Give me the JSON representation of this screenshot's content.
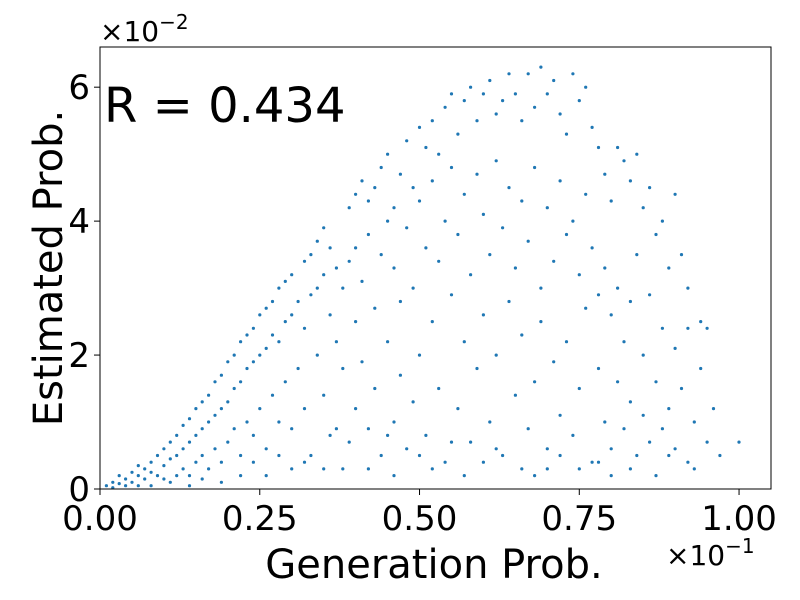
{
  "chart_data": {
    "type": "scatter",
    "title": "",
    "xlabel": "Generation Prob.",
    "ylabel": "Estimated Prob.",
    "annotation": "R = 0.434",
    "x_offset_text": {
      "base": "×10",
      "exp": "−1"
    },
    "y_offset_text": {
      "base": "×10",
      "exp": "−2"
    },
    "xlim": [
      0.0,
      1.05
    ],
    "ylim": [
      0.0,
      6.6
    ],
    "xticks": [
      0.0,
      0.25,
      0.5,
      0.75,
      1.0
    ],
    "xtick_labels": [
      "0.00",
      "0.25",
      "0.50",
      "0.75",
      "1.00"
    ],
    "yticks": [
      0,
      2,
      4,
      6
    ],
    "ytick_labels": [
      "0",
      "2",
      "4",
      "6"
    ],
    "grid": false,
    "marker_color": "#1f77b4",
    "series": [
      {
        "points": [
          [
            0.01,
            0.05
          ],
          [
            0.02,
            0.1
          ],
          [
            0.03,
            0.08
          ],
          [
            0.04,
            0.15
          ],
          [
            0.05,
            0.1
          ],
          [
            0.05,
            0.25
          ],
          [
            0.06,
            0.2
          ],
          [
            0.06,
            0.35
          ],
          [
            0.07,
            0.3
          ],
          [
            0.07,
            0.15
          ],
          [
            0.08,
            0.4
          ],
          [
            0.08,
            0.25
          ],
          [
            0.09,
            0.5
          ],
          [
            0.09,
            0.2
          ],
          [
            0.1,
            0.6
          ],
          [
            0.1,
            0.35
          ],
          [
            0.1,
            0.15
          ],
          [
            0.11,
            0.7
          ],
          [
            0.11,
            0.45
          ],
          [
            0.12,
            0.8
          ],
          [
            0.12,
            0.5
          ],
          [
            0.12,
            0.2
          ],
          [
            0.13,
            0.95
          ],
          [
            0.13,
            0.6
          ],
          [
            0.13,
            0.3
          ],
          [
            0.14,
            1.05
          ],
          [
            0.14,
            0.7
          ],
          [
            0.14,
            0.2
          ],
          [
            0.15,
            1.2
          ],
          [
            0.15,
            0.8
          ],
          [
            0.15,
            0.4
          ],
          [
            0.16,
            1.3
          ],
          [
            0.16,
            0.9
          ],
          [
            0.16,
            0.5
          ],
          [
            0.17,
            1.4
          ],
          [
            0.17,
            1.0
          ],
          [
            0.17,
            0.3
          ],
          [
            0.18,
            1.6
          ],
          [
            0.18,
            1.1
          ],
          [
            0.18,
            0.6
          ],
          [
            0.19,
            1.7
          ],
          [
            0.19,
            1.2
          ],
          [
            0.19,
            0.4
          ],
          [
            0.2,
            1.9
          ],
          [
            0.2,
            1.3
          ],
          [
            0.2,
            0.7
          ],
          [
            0.21,
            2.0
          ],
          [
            0.21,
            1.5
          ],
          [
            0.21,
            0.9
          ],
          [
            0.22,
            2.2
          ],
          [
            0.22,
            1.6
          ],
          [
            0.22,
            0.5
          ],
          [
            0.23,
            2.3
          ],
          [
            0.23,
            1.8
          ],
          [
            0.23,
            1.0
          ],
          [
            0.24,
            2.4
          ],
          [
            0.24,
            1.9
          ],
          [
            0.24,
            0.8
          ],
          [
            0.25,
            2.6
          ],
          [
            0.25,
            2.0
          ],
          [
            0.25,
            1.2
          ],
          [
            0.26,
            2.7
          ],
          [
            0.26,
            2.1
          ],
          [
            0.26,
            0.6
          ],
          [
            0.27,
            2.8
          ],
          [
            0.27,
            2.3
          ],
          [
            0.27,
            1.4
          ],
          [
            0.28,
            3.0
          ],
          [
            0.28,
            2.2
          ],
          [
            0.28,
            1.0
          ],
          [
            0.29,
            3.1
          ],
          [
            0.29,
            2.5
          ],
          [
            0.29,
            1.6
          ],
          [
            0.3,
            3.2
          ],
          [
            0.3,
            2.6
          ],
          [
            0.3,
            0.9
          ],
          [
            0.31,
            2.8
          ],
          [
            0.31,
            1.8
          ],
          [
            0.32,
            3.4
          ],
          [
            0.32,
            2.4
          ],
          [
            0.32,
            1.2
          ],
          [
            0.33,
            3.5
          ],
          [
            0.33,
            2.9
          ],
          [
            0.33,
            0.5
          ],
          [
            0.34,
            3.7
          ],
          [
            0.34,
            3.0
          ],
          [
            0.34,
            2.0
          ],
          [
            0.35,
            3.9
          ],
          [
            0.35,
            3.2
          ],
          [
            0.35,
            1.4
          ],
          [
            0.36,
            3.6
          ],
          [
            0.36,
            2.6
          ],
          [
            0.36,
            0.8
          ],
          [
            0.37,
            3.3
          ],
          [
            0.37,
            2.2
          ],
          [
            0.38,
            3.0
          ],
          [
            0.38,
            1.8
          ],
          [
            0.39,
            4.2
          ],
          [
            0.39,
            3.4
          ],
          [
            0.39,
            0.7
          ],
          [
            0.4,
            4.4
          ],
          [
            0.4,
            3.6
          ],
          [
            0.4,
            2.5
          ],
          [
            0.4,
            1.2
          ],
          [
            0.41,
            4.6
          ],
          [
            0.41,
            3.1
          ],
          [
            0.41,
            1.9
          ],
          [
            0.42,
            4.3
          ],
          [
            0.42,
            3.8
          ],
          [
            0.42,
            0.9
          ],
          [
            0.43,
            4.5
          ],
          [
            0.43,
            2.7
          ],
          [
            0.43,
            1.5
          ],
          [
            0.44,
            4.8
          ],
          [
            0.44,
            3.5
          ],
          [
            0.44,
            0.5
          ],
          [
            0.45,
            5.0
          ],
          [
            0.45,
            4.0
          ],
          [
            0.45,
            2.2
          ],
          [
            0.46,
            4.2
          ],
          [
            0.46,
            3.3
          ],
          [
            0.46,
            1.0
          ],
          [
            0.47,
            4.7
          ],
          [
            0.47,
            2.8
          ],
          [
            0.47,
            1.7
          ],
          [
            0.48,
            5.2
          ],
          [
            0.48,
            3.9
          ],
          [
            0.48,
            0.6
          ],
          [
            0.49,
            4.5
          ],
          [
            0.49,
            3.0
          ],
          [
            0.49,
            1.3
          ],
          [
            0.5,
            5.4
          ],
          [
            0.5,
            4.3
          ],
          [
            0.5,
            2.0
          ],
          [
            0.51,
            5.1
          ],
          [
            0.51,
            3.6
          ],
          [
            0.51,
            0.8
          ],
          [
            0.52,
            5.5
          ],
          [
            0.52,
            4.6
          ],
          [
            0.52,
            2.5
          ],
          [
            0.53,
            5.0
          ],
          [
            0.53,
            3.4
          ],
          [
            0.53,
            1.5
          ],
          [
            0.54,
            5.7
          ],
          [
            0.54,
            4.0
          ],
          [
            0.54,
            0.4
          ],
          [
            0.55,
            5.9
          ],
          [
            0.55,
            4.8
          ],
          [
            0.55,
            2.9
          ],
          [
            0.56,
            5.3
          ],
          [
            0.56,
            3.8
          ],
          [
            0.56,
            1.2
          ],
          [
            0.57,
            5.8
          ],
          [
            0.57,
            4.4
          ],
          [
            0.57,
            2.2
          ],
          [
            0.58,
            6.0
          ],
          [
            0.58,
            3.2
          ],
          [
            0.58,
            0.7
          ],
          [
            0.59,
            5.5
          ],
          [
            0.59,
            4.7
          ],
          [
            0.59,
            1.8
          ],
          [
            0.6,
            5.9
          ],
          [
            0.6,
            4.1
          ],
          [
            0.6,
            2.6
          ],
          [
            0.61,
            6.1
          ],
          [
            0.61,
            3.5
          ],
          [
            0.61,
            1.0
          ],
          [
            0.62,
            5.6
          ],
          [
            0.62,
            4.9
          ],
          [
            0.62,
            2.0
          ],
          [
            0.63,
            5.8
          ],
          [
            0.63,
            3.9
          ],
          [
            0.63,
            0.5
          ],
          [
            0.64,
            6.2
          ],
          [
            0.64,
            4.5
          ],
          [
            0.64,
            2.8
          ],
          [
            0.65,
            5.9
          ],
          [
            0.65,
            3.3
          ],
          [
            0.65,
            1.4
          ],
          [
            0.66,
            5.5
          ],
          [
            0.66,
            4.3
          ],
          [
            0.66,
            2.3
          ],
          [
            0.67,
            6.2
          ],
          [
            0.67,
            3.7
          ],
          [
            0.67,
            0.9
          ],
          [
            0.68,
            5.7
          ],
          [
            0.68,
            4.8
          ],
          [
            0.68,
            1.6
          ],
          [
            0.69,
            6.3
          ],
          [
            0.69,
            3.0
          ],
          [
            0.69,
            2.5
          ],
          [
            0.7,
            5.9
          ],
          [
            0.7,
            4.2
          ],
          [
            0.7,
            0.6
          ],
          [
            0.71,
            6.1
          ],
          [
            0.71,
            3.4
          ],
          [
            0.71,
            1.9
          ],
          [
            0.72,
            5.6
          ],
          [
            0.72,
            4.6
          ],
          [
            0.72,
            1.1
          ],
          [
            0.73,
            5.3
          ],
          [
            0.73,
            3.8
          ],
          [
            0.73,
            2.2
          ],
          [
            0.74,
            6.2
          ],
          [
            0.74,
            4.0
          ],
          [
            0.74,
            0.8
          ],
          [
            0.75,
            5.8
          ],
          [
            0.75,
            3.2
          ],
          [
            0.75,
            1.5
          ],
          [
            0.76,
            6.0
          ],
          [
            0.76,
            4.4
          ],
          [
            0.76,
            2.7
          ],
          [
            0.77,
            5.4
          ],
          [
            0.77,
            3.6
          ],
          [
            0.77,
            0.4
          ],
          [
            0.78,
            5.1
          ],
          [
            0.78,
            2.9
          ],
          [
            0.78,
            1.8
          ],
          [
            0.79,
            4.7
          ],
          [
            0.79,
            3.3
          ],
          [
            0.79,
            1.0
          ],
          [
            0.8,
            4.3
          ],
          [
            0.8,
            2.6
          ],
          [
            0.8,
            0.6
          ],
          [
            0.81,
            5.1
          ],
          [
            0.81,
            3.0
          ],
          [
            0.81,
            1.6
          ],
          [
            0.82,
            4.9
          ],
          [
            0.82,
            2.2
          ],
          [
            0.82,
            0.9
          ],
          [
            0.83,
            4.6
          ],
          [
            0.83,
            2.8
          ],
          [
            0.83,
            1.3
          ],
          [
            0.84,
            5.0
          ],
          [
            0.84,
            3.5
          ],
          [
            0.84,
            0.5
          ],
          [
            0.85,
            4.2
          ],
          [
            0.85,
            2.0
          ],
          [
            0.85,
            1.1
          ],
          [
            0.86,
            4.5
          ],
          [
            0.86,
            2.9
          ],
          [
            0.86,
            0.7
          ],
          [
            0.87,
            3.8
          ],
          [
            0.87,
            1.6
          ],
          [
            0.88,
            4.0
          ],
          [
            0.88,
            2.4
          ],
          [
            0.88,
            0.9
          ],
          [
            0.89,
            3.3
          ],
          [
            0.89,
            1.2
          ],
          [
            0.9,
            4.4
          ],
          [
            0.9,
            2.1
          ],
          [
            0.9,
            0.6
          ],
          [
            0.91,
            3.5
          ],
          [
            0.91,
            1.5
          ],
          [
            0.92,
            3.0
          ],
          [
            0.92,
            2.4
          ],
          [
            0.93,
            1.0
          ],
          [
            0.93,
            0.3
          ],
          [
            0.94,
            2.5
          ],
          [
            0.94,
            1.8
          ],
          [
            0.95,
            2.4
          ],
          [
            0.95,
            0.7
          ],
          [
            0.96,
            1.2
          ],
          [
            0.97,
            0.5
          ],
          [
            1.0,
            0.7
          ],
          [
            0.02,
            0.02
          ],
          [
            0.03,
            0.2
          ],
          [
            0.04,
            0.05
          ],
          [
            0.06,
            0.05
          ],
          [
            0.08,
            0.05
          ],
          [
            0.11,
            0.1
          ],
          [
            0.14,
            0.05
          ],
          [
            0.16,
            0.15
          ],
          [
            0.19,
            0.1
          ],
          [
            0.22,
            0.2
          ],
          [
            0.24,
            0.4
          ],
          [
            0.26,
            0.2
          ],
          [
            0.28,
            0.5
          ],
          [
            0.3,
            0.3
          ],
          [
            0.32,
            0.4
          ],
          [
            0.35,
            0.3
          ],
          [
            0.37,
            0.9
          ],
          [
            0.38,
            0.3
          ],
          [
            0.42,
            0.3
          ],
          [
            0.45,
            0.8
          ],
          [
            0.46,
            0.2
          ],
          [
            0.5,
            0.5
          ],
          [
            0.52,
            0.3
          ],
          [
            0.55,
            0.7
          ],
          [
            0.57,
            0.2
          ],
          [
            0.6,
            0.4
          ],
          [
            0.62,
            0.6
          ],
          [
            0.66,
            0.3
          ],
          [
            0.68,
            0.2
          ],
          [
            0.7,
            0.3
          ],
          [
            0.72,
            0.5
          ],
          [
            0.75,
            0.3
          ],
          [
            0.78,
            0.4
          ],
          [
            0.8,
            0.2
          ],
          [
            0.83,
            0.3
          ],
          [
            0.87,
            0.2
          ],
          [
            0.89,
            0.5
          ],
          [
            0.92,
            0.4
          ]
        ]
      }
    ]
  }
}
